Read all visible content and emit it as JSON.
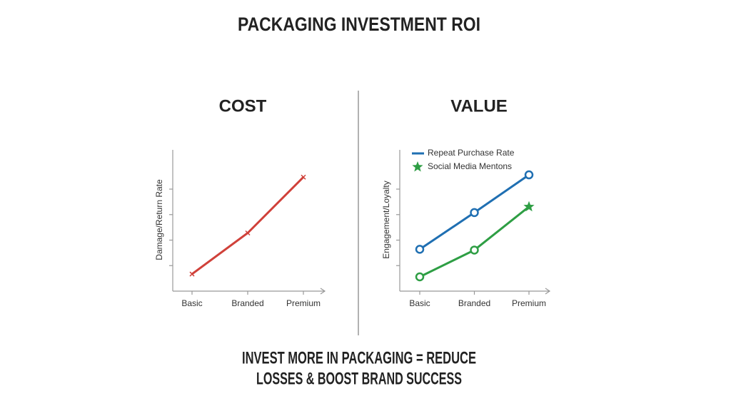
{
  "title": "PACKAGING INVESTMENT ROI",
  "footer": [
    "INVEST MORE IN PACKAGING = REDUCE",
    "LOSSES & BOOST BRAND SUCCESS"
  ],
  "chart_data": [
    {
      "type": "line",
      "title": "COST",
      "y_label": "Damage/Return Rate",
      "categories": [
        "Basic",
        "Branded",
        "Premium"
      ],
      "values": [
        0.67,
        2.28,
        4.47
      ],
      "color": "#d0413a",
      "marker": "x",
      "ylim": [
        0,
        5.4
      ],
      "yticks": [
        1,
        2,
        3,
        4
      ]
    },
    {
      "type": "line",
      "title": "VALUE",
      "y_label": "Engagement/Loyalty",
      "categories": [
        "Basic",
        "Branded",
        "Premium"
      ],
      "series": [
        {
          "name": "Repeat Purchase Rate",
          "color": "#1f6fb2",
          "marker": "circle",
          "values": [
            1.64,
            3.08,
            4.56
          ]
        },
        {
          "name": "Social Media Mentons",
          "color": "#2e9e44",
          "marker": "circle",
          "end_marker": "star",
          "values": [
            0.56,
            1.61,
            3.31
          ]
        }
      ],
      "ylim": [
        0,
        5.4
      ],
      "yticks": [
        1,
        2,
        3,
        4
      ]
    }
  ]
}
